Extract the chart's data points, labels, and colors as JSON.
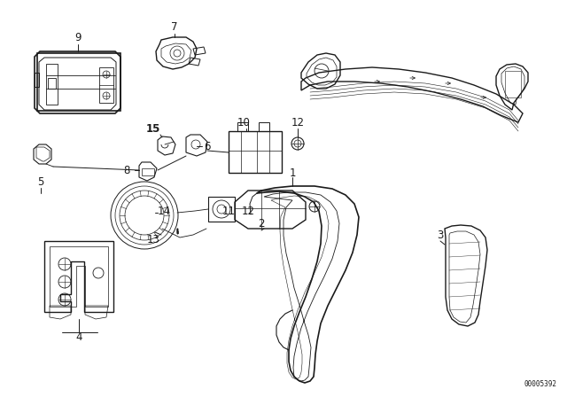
{
  "bg_color": "#ffffff",
  "line_color": "#1a1a1a",
  "fig_width": 6.4,
  "fig_height": 4.48,
  "dpi": 100,
  "watermark": "00005392",
  "lw_main": 1.0,
  "lw_thin": 0.5,
  "lw_med": 0.7
}
